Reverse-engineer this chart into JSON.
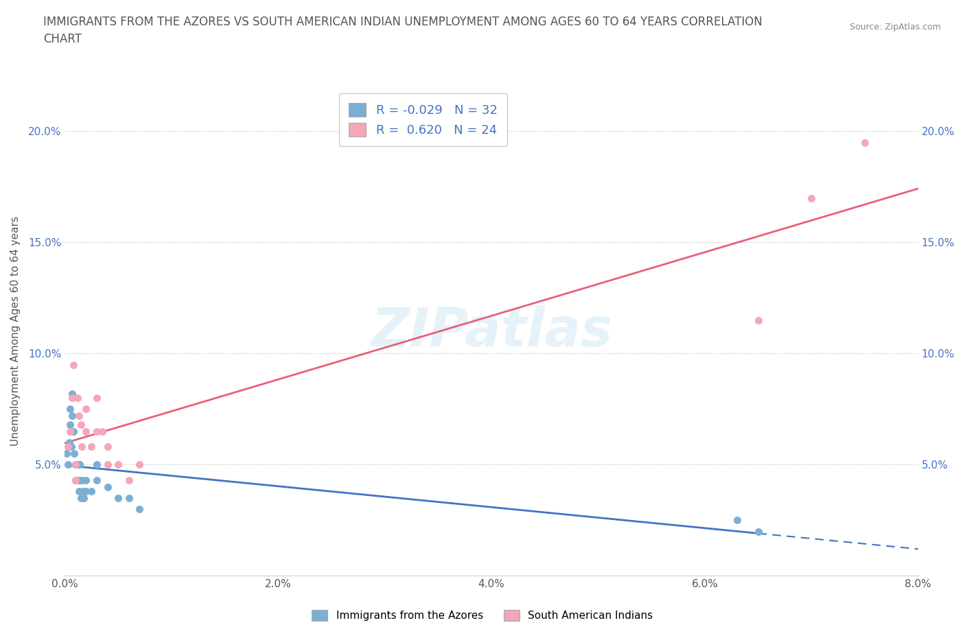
{
  "title": "IMMIGRANTS FROM THE AZORES VS SOUTH AMERICAN INDIAN UNEMPLOYMENT AMONG AGES 60 TO 64 YEARS CORRELATION\nCHART",
  "source_text": "Source: ZipAtlas.com",
  "xlabel": "",
  "ylabel": "Unemployment Among Ages 60 to 64 years",
  "watermark": "ZIPatlas",
  "legend_label1": "Immigrants from the Azores",
  "legend_label2": "South American Indians",
  "R1": "-0.029",
  "N1": "32",
  "R2": "0.620",
  "N2": "24",
  "xlim": [
    0.0,
    0.08
  ],
  "ylim": [
    0.0,
    0.22
  ],
  "xticks": [
    0.0,
    0.02,
    0.04,
    0.06,
    0.08
  ],
  "yticks": [
    0.0,
    0.05,
    0.1,
    0.15,
    0.2
  ],
  "xtick_labels": [
    "0.0%",
    "2.0%",
    "4.0%",
    "6.0%",
    "8.0%"
  ],
  "ytick_labels": [
    "",
    "5.0%",
    "10.0%",
    "15.0%",
    "20.0%"
  ],
  "color_blue": "#7bafd4",
  "color_pink": "#f4a7b9",
  "line_blue": "#4472c4",
  "line_pink": "#e8607a",
  "blue_x": [
    0.0002,
    0.0003,
    0.0004,
    0.0005,
    0.0005,
    0.0006,
    0.0007,
    0.0007,
    0.0008,
    0.0009,
    0.001,
    0.001,
    0.0012,
    0.0013,
    0.0013,
    0.0014,
    0.0015,
    0.0015,
    0.0016,
    0.0017,
    0.0018,
    0.002,
    0.002,
    0.0025,
    0.003,
    0.003,
    0.004,
    0.005,
    0.006,
    0.007,
    0.063,
    0.065
  ],
  "blue_y": [
    0.055,
    0.05,
    0.06,
    0.075,
    0.068,
    0.058,
    0.082,
    0.072,
    0.065,
    0.055,
    0.05,
    0.043,
    0.05,
    0.043,
    0.038,
    0.05,
    0.043,
    0.035,
    0.043,
    0.038,
    0.035,
    0.043,
    0.038,
    0.038,
    0.05,
    0.043,
    0.04,
    0.035,
    0.035,
    0.03,
    0.025,
    0.02
  ],
  "pink_x": [
    0.0003,
    0.0005,
    0.0007,
    0.0008,
    0.001,
    0.001,
    0.0012,
    0.0013,
    0.0015,
    0.0016,
    0.002,
    0.002,
    0.0025,
    0.003,
    0.003,
    0.0035,
    0.004,
    0.004,
    0.005,
    0.006,
    0.007,
    0.065,
    0.07,
    0.075
  ],
  "pink_y": [
    0.058,
    0.065,
    0.08,
    0.095,
    0.05,
    0.043,
    0.08,
    0.072,
    0.068,
    0.058,
    0.075,
    0.065,
    0.058,
    0.08,
    0.065,
    0.065,
    0.058,
    0.05,
    0.05,
    0.043,
    0.05,
    0.115,
    0.17,
    0.195
  ],
  "blue_line_solid_end": 0.065,
  "blue_line_dashed_start": 0.065
}
